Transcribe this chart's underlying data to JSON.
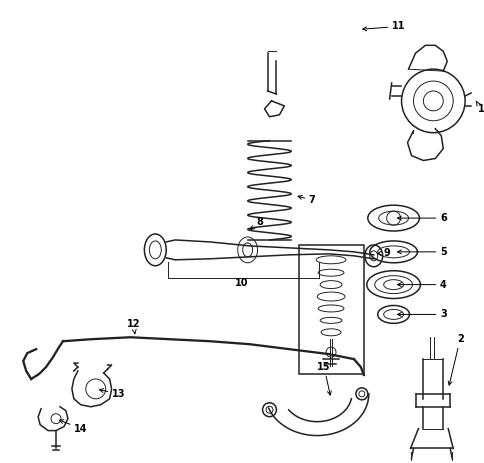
{
  "background_color": "#ffffff",
  "line_color": "#222222",
  "label_color": "#000000",
  "figsize": [
    4.85,
    4.63
  ],
  "dpi": 100
}
